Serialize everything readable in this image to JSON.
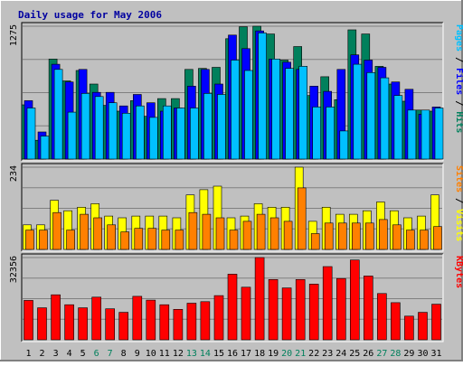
{
  "chart_data": {
    "type": "bar",
    "title": "Daily usage for May 2006",
    "categories": [
      "1",
      "2",
      "3",
      "4",
      "5",
      "6",
      "7",
      "8",
      "9",
      "10",
      "11",
      "12",
      "13",
      "14",
      "15",
      "16",
      "17",
      "18",
      "19",
      "20",
      "21",
      "22",
      "23",
      "24",
      "25",
      "26",
      "27",
      "28",
      "29",
      "30",
      "31"
    ],
    "weekend_days": [
      "6",
      "7",
      "13",
      "14",
      "20",
      "21",
      "27",
      "28"
    ],
    "panels": [
      {
        "name": "top",
        "max_label": "1275",
        "ymax": 1275,
        "grid": true,
        "axis_label": [
          {
            "text": "Pages",
            "color": "#00c0ff"
          },
          {
            "text": " / ",
            "color": "#000000"
          },
          {
            "text": "Files",
            "color": "#0000ff"
          },
          {
            "text": " / ",
            "color": "#000000"
          },
          {
            "text": "Hits",
            "color": "#00805c"
          }
        ],
        "series": [
          {
            "name": "Hits",
            "color": "#00805c",
            "values": [
              520,
              180,
              960,
              750,
              850,
              720,
              515,
              460,
              560,
              410,
              580,
              580,
              860,
              870,
              880,
              1155,
              1270,
              1280,
              1200,
              950,
              1080,
              610,
              790,
              570,
              1240,
              1200,
              890,
              720,
              555,
              470,
              460
            ]
          },
          {
            "name": "Files",
            "color": "#0000ff",
            "values": [
              560,
              260,
              910,
              740,
              860,
              640,
              640,
              510,
              620,
              540,
              460,
              490,
              700,
              860,
              720,
              1190,
              1060,
              1230,
              960,
              930,
              860,
              700,
              650,
              860,
              1000,
              950,
              880,
              740,
              670,
              430,
              500
            ]
          },
          {
            "name": "Pages",
            "color": "#00c0ff",
            "values": [
              490,
              220,
              860,
              450,
              630,
              600,
              540,
              440,
              510,
              400,
              510,
              490,
              490,
              630,
              620,
              950,
              850,
              1210,
              960,
              870,
              890,
              500,
              500,
              270,
              910,
              830,
              780,
              610,
              470,
              470,
              490
            ]
          }
        ]
      },
      {
        "name": "middle",
        "max_label": "234",
        "ymax": 234,
        "grid": true,
        "axis_label": [
          {
            "text": "Sites",
            "color": "#ff8000"
          },
          {
            "text": " / ",
            "color": "#000000"
          },
          {
            "text": "Visits",
            "color": "#ffff00"
          }
        ],
        "series": [
          {
            "name": "Visits",
            "color": "#ffff00",
            "values": [
              70,
              70,
              140,
              110,
              120,
              130,
              95,
              90,
              95,
              95,
              95,
              90,
              155,
              170,
              180,
              90,
              95,
              130,
              120,
              120,
              235,
              80,
              120,
              100,
              100,
              110,
              135,
              110,
              90,
              95,
              155
            ]
          },
          {
            "name": "Sites",
            "color": "#ff8000",
            "values": [
              55,
              55,
              105,
              55,
              100,
              90,
              70,
              50,
              60,
              60,
              55,
              55,
              105,
              100,
              90,
              55,
              80,
              100,
              90,
              80,
              175,
              45,
              75,
              75,
              75,
              75,
              85,
              70,
              55,
              55,
              65
            ]
          }
        ]
      },
      {
        "name": "bottom",
        "max_label": "32356",
        "ymax": 32356,
        "grid": true,
        "axis_label": [
          {
            "text": "KBytes",
            "color": "#ff0000"
          }
        ],
        "series": [
          {
            "name": "KBytes",
            "color": "#ff0000",
            "values": [
              15500,
              12600,
              17700,
              13800,
              12600,
              16800,
              12200,
              10800,
              17100,
              15600,
              13800,
              12000,
              14400,
              15000,
              17400,
              25800,
              20700,
              32400,
              23700,
              20400,
              23700,
              21900,
              28800,
              24100,
              31400,
              25100,
              18200,
              14600,
              9300,
              10800,
              14000
            ]
          }
        ]
      }
    ]
  }
}
